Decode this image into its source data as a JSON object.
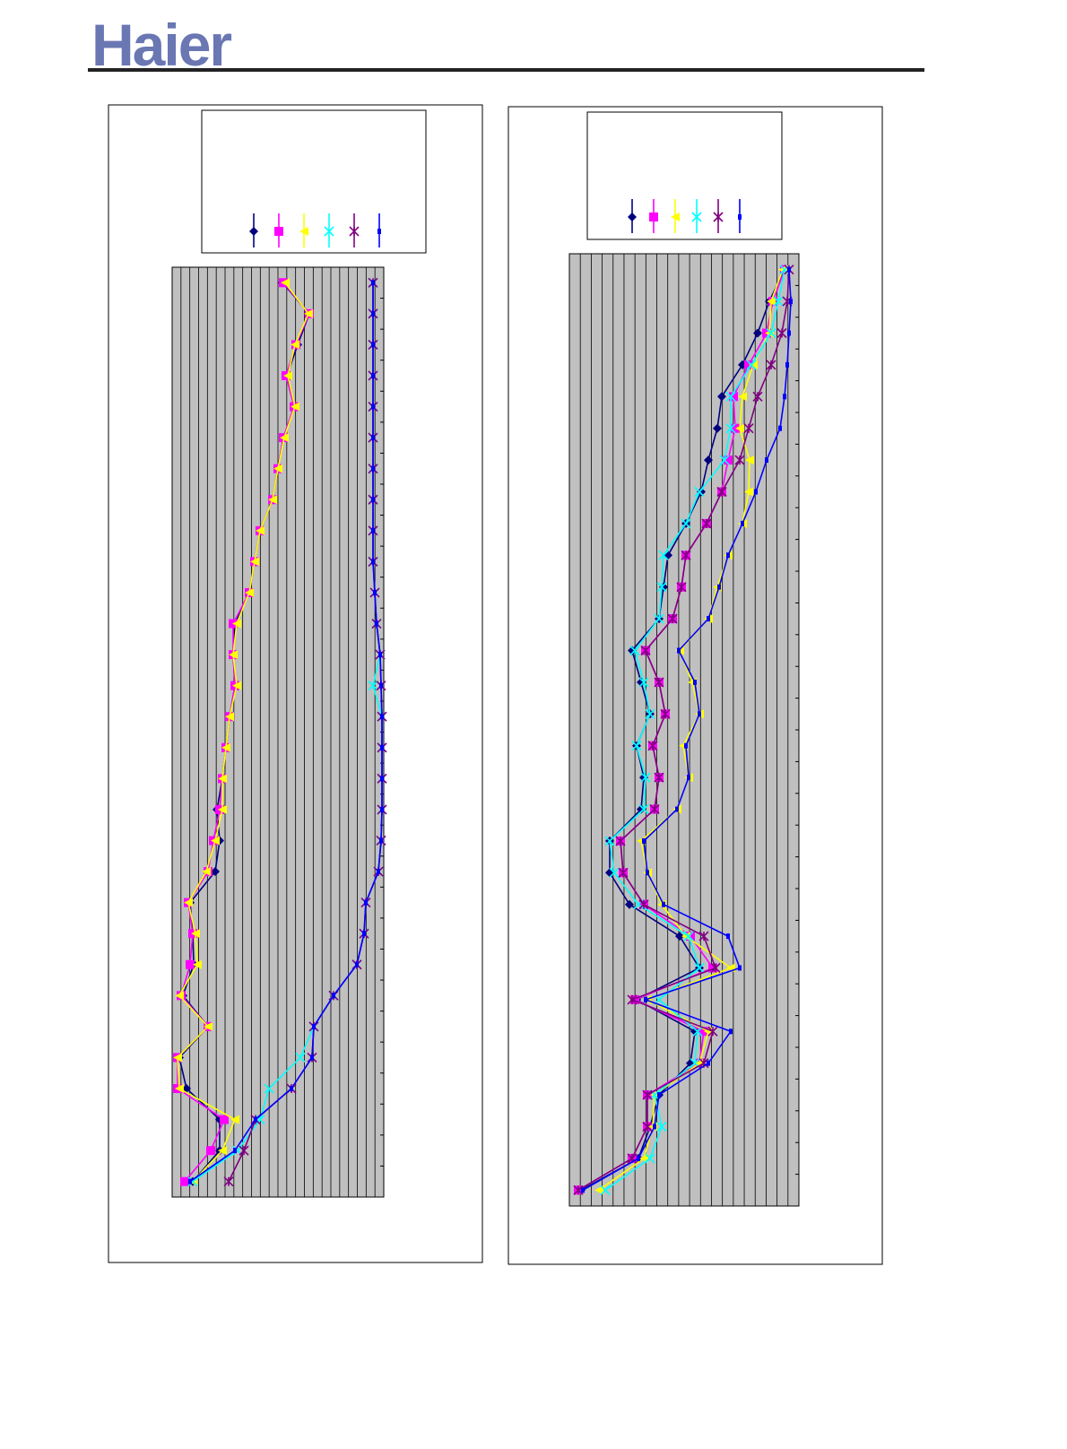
{
  "header": {
    "logo": "Haier"
  },
  "chart_data": [
    {
      "type": "line",
      "orientation": "horizontal",
      "grid": true,
      "categories": [
        null,
        null,
        null,
        null,
        null,
        null,
        null,
        null,
        null,
        null,
        null,
        null,
        null,
        null,
        null,
        null,
        null,
        null,
        null,
        null,
        null,
        null,
        null,
        null,
        null,
        null,
        null,
        null,
        null,
        null
      ],
      "ylim": [
        0,
        236
      ],
      "series": [
        {
          "color": "#000080",
          "marker": "diamond",
          "values": [
            123,
            153,
            140,
            128,
            137,
            124,
            118,
            112,
            98,
            92,
            86,
            70,
            68,
            70,
            64,
            60,
            56,
            50,
            53,
            48,
            20,
            23,
            24,
            12,
            40,
            8,
            16,
            53,
            53,
            23
          ]
        },
        {
          "color": "#ff00ff",
          "marker": "square",
          "values": [
            124,
            153,
            138,
            127,
            136,
            124,
            118,
            112,
            98,
            92,
            86,
            68,
            68,
            70,
            64,
            60,
            56,
            53,
            46,
            40,
            18,
            23,
            20,
            10,
            40,
            6,
            6,
            58,
            43,
            14
          ]
        },
        {
          "color": "#ffff00",
          "marker": "triangle",
          "values": [
            126,
            152,
            137,
            129,
            137,
            125,
            118,
            112,
            98,
            92,
            86,
            72,
            68,
            72,
            64,
            60,
            56,
            56,
            48,
            38,
            18,
            26,
            28,
            8,
            40,
            6,
            8,
            70,
            56,
            23
          ]
        },
        {
          "color": "#00ffff",
          "marker": "x",
          "values": [
            224,
            224,
            224,
            224,
            224,
            224,
            224,
            224,
            224,
            224,
            226,
            228,
            232,
            224,
            234,
            234,
            234,
            234,
            233,
            230,
            216,
            214,
            206,
            180,
            158,
            143,
            108,
            98,
            73,
            23
          ]
        },
        {
          "color": "#800080",
          "marker": "star",
          "values": [
            224,
            224,
            224,
            224,
            224,
            224,
            224,
            224,
            224,
            224,
            226,
            228,
            232,
            233,
            234,
            234,
            234,
            234,
            233,
            230,
            216,
            214,
            206,
            180,
            158,
            156,
            133,
            93,
            80,
            63
          ]
        },
        {
          "color": "#0000ff",
          "marker": "bar",
          "values": [
            224,
            224,
            224,
            224,
            224,
            224,
            224,
            224,
            224,
            224,
            226,
            228,
            232,
            233,
            234,
            234,
            234,
            234,
            233,
            230,
            216,
            214,
            206,
            180,
            158,
            156,
            133,
            93,
            70,
            20
          ]
        }
      ]
    },
    {
      "type": "line",
      "orientation": "horizontal",
      "grid": true,
      "categories": [
        null,
        null,
        null,
        null,
        null,
        null,
        null,
        null,
        null,
        null,
        null,
        null,
        null,
        null,
        null,
        null,
        null,
        null,
        null,
        null,
        null,
        null,
        null,
        null,
        null,
        null,
        null,
        null,
        null,
        null
      ],
      "ylim": [
        0,
        256
      ],
      "series": [
        {
          "color": "#000080",
          "marker": "diamond",
          "values": [
            240,
            223,
            210,
            193,
            170,
            165,
            155,
            147,
            130,
            110,
            105,
            100,
            70,
            80,
            90,
            75,
            83,
            80,
            45,
            45,
            67,
            123,
            145,
            75,
            140,
            135,
            100,
            90,
            77,
            13
          ]
        },
        {
          "color": "#ff00ff",
          "marker": "square",
          "values": [
            240,
            227,
            220,
            200,
            183,
            185,
            177,
            170,
            153,
            130,
            125,
            115,
            85,
            100,
            107,
            93,
            100,
            95,
            57,
            60,
            83,
            135,
            160,
            73,
            150,
            145,
            87,
            87,
            70,
            10
          ]
        },
        {
          "color": "#ffff00",
          "marker": "triangle",
          "values": [
            238,
            225,
            223,
            205,
            193,
            190,
            201,
            200,
            193,
            177,
            165,
            155,
            123,
            137,
            145,
            127,
            133,
            120,
            80,
            87,
            103,
            130,
            180,
            87,
            155,
            145,
            95,
            93,
            83,
            33
          ]
        },
        {
          "color": "#00ffff",
          "marker": "x",
          "values": [
            240,
            233,
            225,
            203,
            180,
            180,
            173,
            145,
            130,
            105,
            103,
            100,
            73,
            83,
            90,
            75,
            85,
            83,
            45,
            50,
            77,
            133,
            145,
            100,
            143,
            140,
            95,
            103,
            90,
            40
          ]
        },
        {
          "color": "#800080",
          "marker": "star",
          "values": [
            245,
            243,
            237,
            225,
            210,
            200,
            190,
            170,
            153,
            130,
            125,
            115,
            85,
            100,
            107,
            93,
            100,
            95,
            57,
            60,
            83,
            150,
            163,
            70,
            160,
            150,
            87,
            87,
            70,
            10
          ]
        },
        {
          "color": "#0000ff",
          "marker": "bar",
          "values": [
            245,
            247,
            245,
            243,
            240,
            235,
            220,
            208,
            193,
            177,
            167,
            155,
            122,
            140,
            145,
            130,
            133,
            120,
            83,
            87,
            105,
            177,
            190,
            85,
            180,
            155,
            100,
            95,
            77,
            15
          ]
        }
      ]
    }
  ]
}
